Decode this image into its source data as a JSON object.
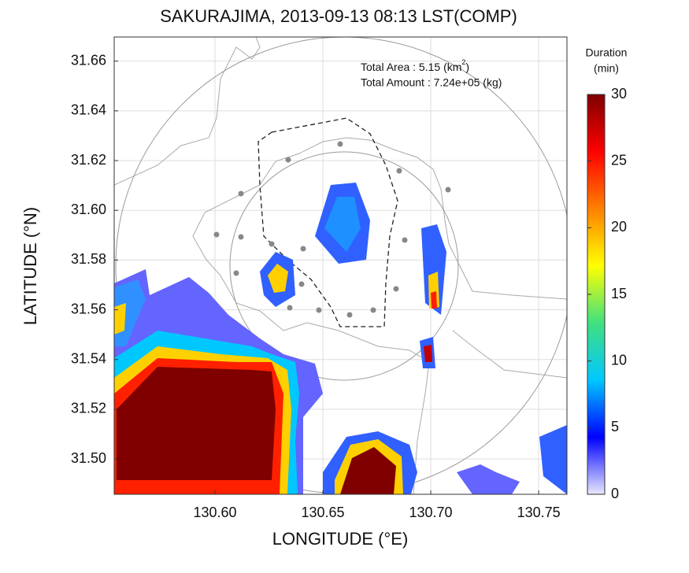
{
  "chart_data": {
    "type": "map",
    "title": "SAKURAJIMA, 2013-09-13 08:13 LST(COMP)",
    "xlabel": "LONGITUDE (°E)",
    "ylabel": "LATITUDE (°N)",
    "xlim": [
      130.5533,
      130.7631
    ],
    "xticks": [
      {
        "value": 130.6,
        "label": "130.60"
      },
      {
        "value": 130.65,
        "label": "130.65"
      },
      {
        "value": 130.7,
        "label": "130.70"
      },
      {
        "value": 130.75,
        "label": "130.75"
      }
    ],
    "ylim": [
      31.4858,
      31.6697
    ],
    "yticks": [
      {
        "value": 31.5,
        "label": "31.50"
      },
      {
        "value": 31.52,
        "label": "31.52"
      },
      {
        "value": 31.54,
        "label": "31.54"
      },
      {
        "value": 31.56,
        "label": "31.56"
      },
      {
        "value": 31.58,
        "label": "31.58"
      },
      {
        "value": 31.6,
        "label": "31.60"
      },
      {
        "value": 31.62,
        "label": "31.62"
      },
      {
        "value": 31.64,
        "label": "31.64"
      },
      {
        "value": 31.66,
        "label": "31.66"
      }
    ],
    "grid": true,
    "annotations": {
      "area_label": "Total Area   : 5.15 (km",
      "area_exp": "2",
      "area_end": ")",
      "amount": "Total Amount : 7.24e+05 (kg)"
    },
    "colorbar": {
      "title": "Duration",
      "unit": "(min)",
      "lim": [
        0,
        30
      ],
      "ticks": [
        0,
        5,
        10,
        15,
        20,
        25,
        30
      ],
      "colors": [
        "#e8e8ff",
        "#0000ff",
        "#00c8ff",
        "#40e080",
        "#ffff00",
        "#ff8000",
        "#ff0000",
        "#800000"
      ]
    }
  }
}
